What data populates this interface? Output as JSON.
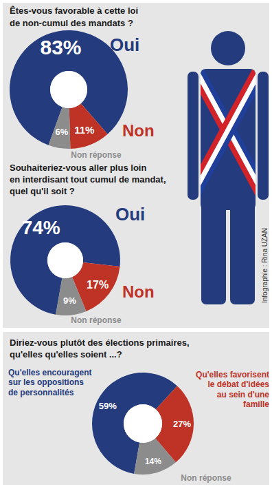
{
  "chart_data": [
    {
      "type": "donut",
      "title": "Êtes-vous favorable à cette loi\nde non-cumul des mandats ?",
      "categories": [
        "Oui",
        "Non",
        "Non réponse"
      ],
      "values": [
        83,
        11,
        6
      ],
      "value_labels": [
        "83%",
        "11%",
        "6%"
      ],
      "colors": [
        "#243b7d",
        "#bf3326",
        "#8c8c8c"
      ],
      "data_labels": true
    },
    {
      "type": "donut",
      "title": "Souhaiteriez-vous aller plus loin\nen interdisant tout cumul de mandat,\nquel qu'il soit ?",
      "categories": [
        "Oui",
        "Non",
        "Non réponse"
      ],
      "values": [
        74,
        17,
        9
      ],
      "value_labels": [
        "74%",
        "17%",
        "9%"
      ],
      "colors": [
        "#243b7d",
        "#bf3326",
        "#8c8c8c"
      ],
      "data_labels": true
    },
    {
      "type": "donut",
      "title": "Diriez-vous plutôt des élections primaires,\nqu'elles qu'elles soient ...?",
      "categories": [
        "Qu'elles encouragent\nsur les oppositions\nde personnalités",
        "Qu'elles favorisent\nle débat d'idées\nau sein d'une\nfamille",
        "Non réponse"
      ],
      "values": [
        59,
        27,
        14
      ],
      "value_labels": [
        "59%",
        "27%",
        "14%"
      ],
      "colors": [
        "#243b7d",
        "#bf3326",
        "#8c8c8c"
      ],
      "data_labels": true
    }
  ],
  "credit": "Infographie : Rina UZAN"
}
